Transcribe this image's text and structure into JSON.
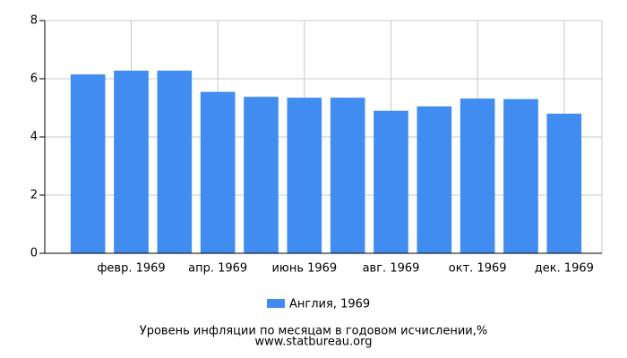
{
  "chart_data": {
    "type": "bar",
    "title": "Уровень инфляции по месяцам в годовом исчислении,%",
    "subtitle": "www.statbureau.org",
    "categories": [
      null,
      "февр. 1969",
      null,
      "апр. 1969",
      null,
      "июнь 1969",
      null,
      "авг. 1969",
      null,
      "окт. 1969",
      null,
      "дек. 1969"
    ],
    "series": [
      {
        "name": "Англия, 1969",
        "color": "#418cf0",
        "values": [
          6.15,
          6.28,
          6.28,
          5.55,
          5.38,
          5.35,
          5.35,
          4.9,
          5.05,
          5.32,
          5.3,
          4.8
        ]
      }
    ],
    "ylim": [
      0,
      8
    ],
    "yticks": [
      0,
      2,
      4,
      6,
      8
    ],
    "grid": true,
    "legend": "bottom"
  }
}
